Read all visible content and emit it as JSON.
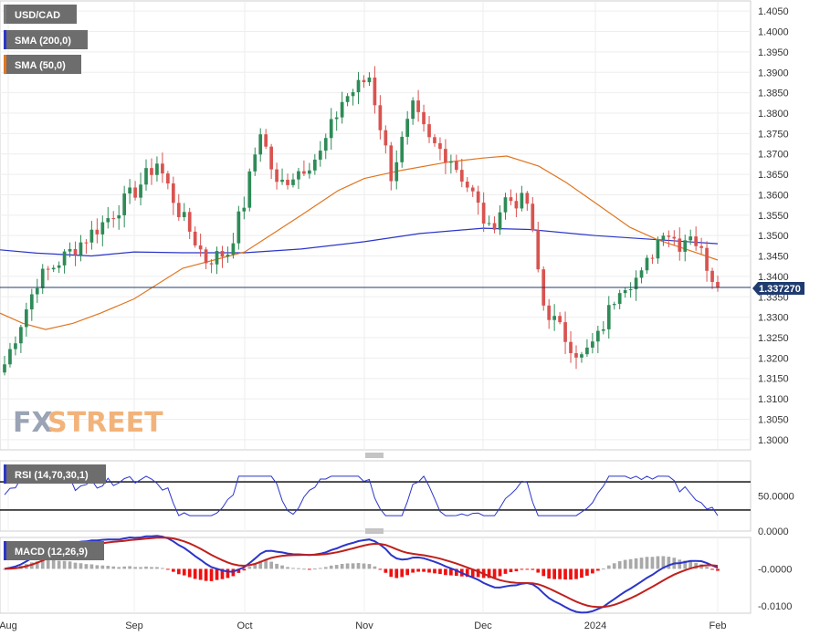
{
  "chart_data": [
    {
      "type": "candlestick",
      "title": "USD/CAD",
      "legend": [
        {
          "label": "USD/CAD",
          "color": "#7a7a7a"
        },
        {
          "label": "SMA (200,0)",
          "color": "#2b35c9"
        },
        {
          "label": "SMA (50,0)",
          "color": "#e0751f"
        }
      ],
      "y_ticks": [
        "1.4050",
        "1.4000",
        "1.3950",
        "1.3900",
        "1.3850",
        "1.3800",
        "1.3750",
        "1.3700",
        "1.3650",
        "1.3600",
        "1.3550",
        "1.3500",
        "1.3450",
        "1.3400",
        "1.3350",
        "1.3300",
        "1.3250",
        "1.3200",
        "1.3150",
        "1.3100",
        "1.3050",
        "1.3000"
      ],
      "ylim": [
        1.2975,
        1.4075
      ],
      "current_price": "1.337270",
      "current_value": 1.3373,
      "x_ticks": [
        "Aug",
        "Sep",
        "Oct",
        "Nov",
        "Dec",
        "2024",
        "Feb"
      ],
      "ohlc_samples": [
        {
          "x": "Aug",
          "close": 1.328
        },
        {
          "x": "Sep",
          "close": 1.356
        },
        {
          "x": "Oct",
          "close": 1.37
        },
        {
          "x": "Nov",
          "close": 1.388
        },
        {
          "x": "Dec",
          "close": 1.356
        },
        {
          "x": "2024",
          "close": 1.32
        },
        {
          "x": "Feb",
          "close": 1.3373
        }
      ],
      "sma200": [
        {
          "x": "Aug",
          "y": 1.3465
        },
        {
          "x": "Sep",
          "y": 1.346
        },
        {
          "x": "Oct",
          "y": 1.3458
        },
        {
          "x": "Nov",
          "y": 1.3485
        },
        {
          "x": "Dec",
          "y": 1.3518
        },
        {
          "x": "2024",
          "y": 1.3505
        },
        {
          "x": "Feb",
          "y": 1.348
        }
      ],
      "sma50": [
        {
          "x": "Aug",
          "y": 1.333
        },
        {
          "x": "Sep",
          "y": 1.332
        },
        {
          "x": "Oct",
          "y": 1.346
        },
        {
          "x": "Nov",
          "y": 1.364
        },
        {
          "x": "Dec",
          "y": 1.368
        },
        {
          "x": "2024",
          "y": 1.356
        },
        {
          "x": "Feb",
          "y": 1.344
        }
      ],
      "watermark": "FXSTREET"
    },
    {
      "type": "line",
      "title": "RSI (14,70,30,1)",
      "y_ticks": [
        "50.0000",
        "0.0000"
      ],
      "levels": [
        70,
        30
      ],
      "ylim": [
        0,
        100
      ]
    },
    {
      "type": "bar",
      "title": "MACD (12,26,9)",
      "y_ticks": [
        "-0.0000",
        "-0.0100"
      ],
      "ylim": [
        -0.012,
        0.0085
      ]
    }
  ],
  "colors": {
    "bull": "#2e8b57",
    "bear": "#d9534f",
    "sma200": "#2b35c9",
    "sma50": "#e0751f",
    "rsi": "#2b35c9",
    "macd": "#2b35c9",
    "signal": "#c0201c",
    "hist_pos": "#a9a9a9",
    "hist_neg": "#ee1111",
    "price_tag": "#1f3b6f"
  }
}
